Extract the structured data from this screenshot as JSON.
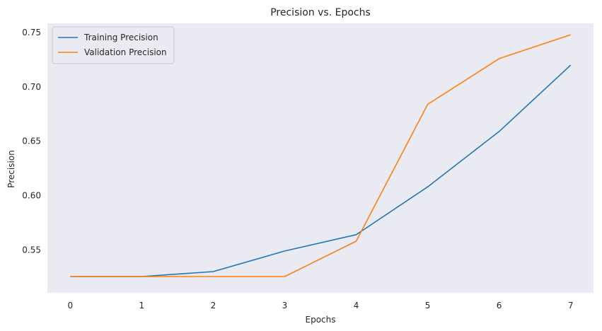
{
  "chart_data": {
    "type": "line",
    "title": "Precision vs. Epochs",
    "xlabel": "Epochs",
    "ylabel": "Precision",
    "x": [
      0,
      1,
      2,
      3,
      4,
      5,
      6,
      7
    ],
    "xticks": [
      "0",
      "1",
      "2",
      "3",
      "4",
      "5",
      "6",
      "7"
    ],
    "yticks": [
      "0.55",
      "0.60",
      "0.65",
      "0.70",
      "0.75"
    ],
    "ytick_values": [
      0.55,
      0.6,
      0.65,
      0.7,
      0.75
    ],
    "xlim": [
      -0.32,
      7.32
    ],
    "ylim": [
      0.5105,
      0.7585
    ],
    "grid": false,
    "legend_position": "top-left",
    "background": "#eaeaf2",
    "series": [
      {
        "name": "Training Precision",
        "color": "#1f77b4",
        "values": [
          0.5255,
          0.5255,
          0.53,
          0.549,
          0.564,
          0.608,
          0.659,
          0.72
        ]
      },
      {
        "name": "Validation Precision",
        "color": "#ff7f0e",
        "values": [
          0.5255,
          0.5255,
          0.5255,
          0.5255,
          0.558,
          0.684,
          0.726,
          0.748
        ]
      }
    ]
  }
}
